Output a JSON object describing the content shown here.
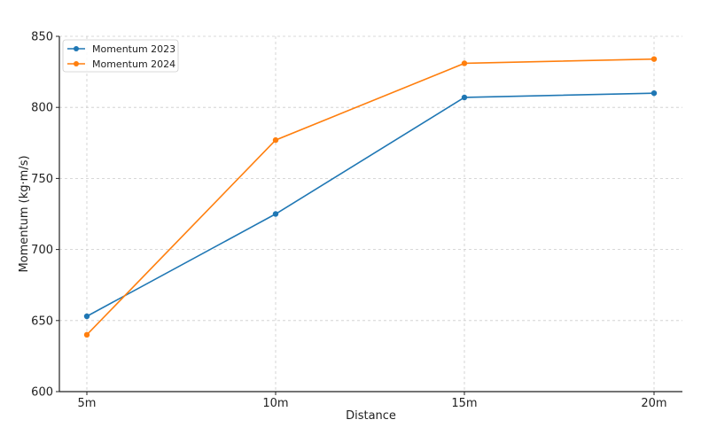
{
  "chart_data": {
    "type": "line",
    "title": "",
    "xlabel": "Distance",
    "ylabel": "Momentum (kg·m/s)",
    "categories": [
      "5m",
      "10m",
      "15m",
      "20m"
    ],
    "ylim": [
      600,
      850
    ],
    "yticks": [
      600,
      650,
      700,
      750,
      800,
      850
    ],
    "grid": true,
    "legend_position": "top-left",
    "series": [
      {
        "name": "Momentum 2023",
        "color": "#1f77b4",
        "marker": "circle",
        "values": [
          653,
          725,
          807,
          810
        ]
      },
      {
        "name": "Momentum 2024",
        "color": "#ff7f0e",
        "marker": "circle",
        "values": [
          640,
          777,
          831,
          834
        ]
      }
    ]
  }
}
